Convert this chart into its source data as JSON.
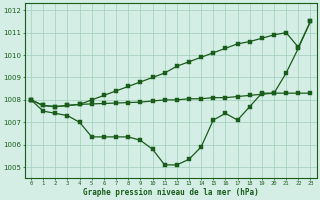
{
  "title": "Graphe pression niveau de la mer (hPa)",
  "background_color": "#d4eee6",
  "grid_color": "#9ecfb8",
  "line_color": "#1a5c1a",
  "ylim": [
    1004.5,
    1012.3
  ],
  "yticks": [
    1005,
    1006,
    1007,
    1008,
    1009,
    1010,
    1011,
    1012
  ],
  "series1": [
    1008.0,
    1007.5,
    1007.4,
    1007.3,
    1007.0,
    1006.35,
    1006.35,
    1006.35,
    1006.35,
    1006.2,
    1005.8,
    1005.1,
    1005.1,
    1005.35,
    1005.9,
    1007.1,
    1007.4,
    1007.1,
    1007.7,
    1008.3,
    1008.3,
    1009.2,
    1010.3,
    1011.5
  ],
  "series2": [
    1008.0,
    1007.75,
    1007.7,
    1007.75,
    1007.8,
    1007.82,
    1007.84,
    1007.86,
    1007.88,
    1007.9,
    1007.95,
    1008.0,
    1008.0,
    1008.05,
    1008.05,
    1008.1,
    1008.1,
    1008.15,
    1008.2,
    1008.25,
    1008.3,
    1008.3,
    1008.3,
    1008.3
  ],
  "series3": [
    1008.0,
    1007.75,
    1007.7,
    1007.75,
    1007.8,
    1008.0,
    1008.2,
    1008.4,
    1008.6,
    1008.8,
    1009.0,
    1009.2,
    1009.5,
    1009.7,
    1009.9,
    1010.1,
    1010.3,
    1010.5,
    1010.6,
    1010.75,
    1010.9,
    1011.0,
    1010.35,
    1011.5
  ]
}
